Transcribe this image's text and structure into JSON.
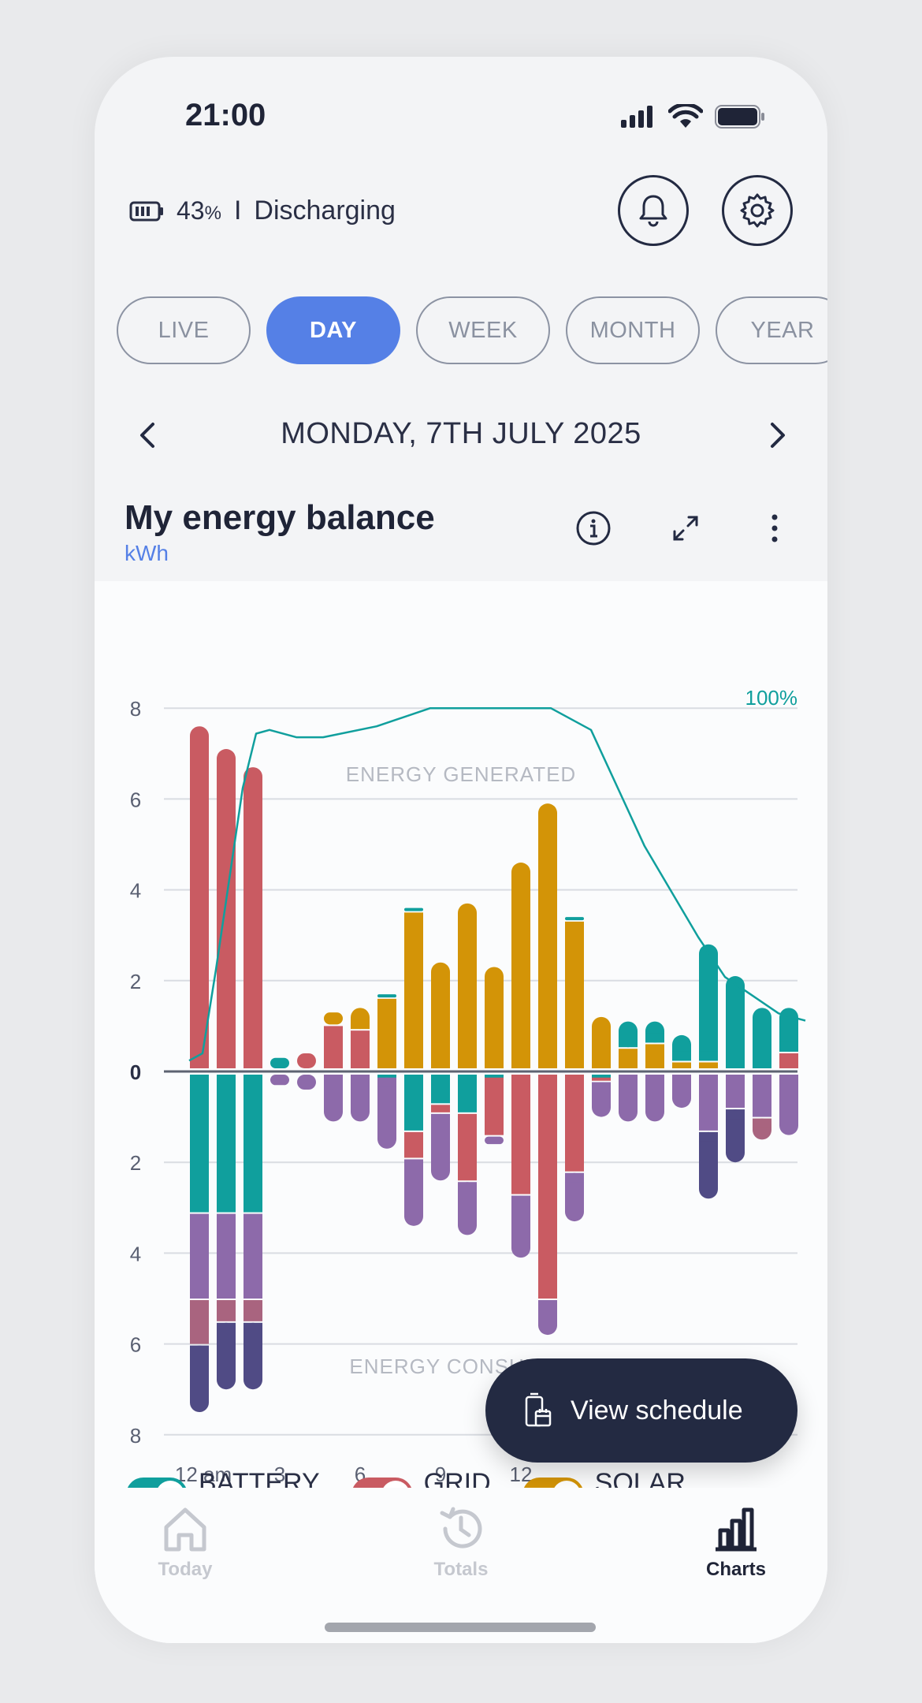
{
  "status_bar": {
    "time": "21:00"
  },
  "battery": {
    "percent": "43",
    "percent_sign": "%",
    "separator": "I",
    "state": "Discharging"
  },
  "header_buttons": {
    "notifications_icon": "bell-icon",
    "settings_icon": "gear-icon"
  },
  "tabs": [
    {
      "label": "LIVE"
    },
    {
      "label": "DAY"
    },
    {
      "label": "WEEK"
    },
    {
      "label": "MONTH"
    },
    {
      "label": "YEAR"
    }
  ],
  "active_tab": "DAY",
  "date": "MONDAY, 7TH JULY 2025",
  "card": {
    "title": "My energy balance",
    "unit": "kWh"
  },
  "colors": {
    "battery": "#109f9d",
    "grid": "#c95b62",
    "solar": "#d39407",
    "home": "#8d6aaa",
    "grid_mix": "#a9647f",
    "export": "#504b85",
    "soc_line": "#109f9d",
    "accent": "#5580e6"
  },
  "chart_data": {
    "type": "bar",
    "stacked": true,
    "ylabel": "kWh",
    "ylim": [
      -8,
      8
    ],
    "y_ticks": [
      8,
      6,
      4,
      2,
      0,
      2,
      4,
      6,
      8
    ],
    "x_tick_labels": [
      "12 am",
      "3",
      "6",
      "9",
      "12"
    ],
    "annotations": {
      "top": "ENERGY GENERATED",
      "bottom": "ENERGY CONSUMED",
      "soc_max": "100%"
    },
    "hours": [
      0,
      1,
      2,
      3,
      4,
      5,
      6,
      7,
      8,
      9,
      10,
      11,
      12,
      13,
      14,
      15,
      16,
      17,
      18,
      19,
      20,
      21,
      22
    ],
    "generated": {
      "grid": [
        7.6,
        7.1,
        6.7,
        0,
        0.4,
        1.0,
        0.9,
        0,
        0,
        0,
        0,
        0,
        0,
        0,
        0,
        0,
        0,
        0,
        0,
        0,
        0,
        0,
        0.4
      ],
      "solar": [
        0,
        0,
        0,
        0,
        0,
        0.3,
        0.5,
        1.6,
        3.5,
        2.4,
        3.7,
        2.3,
        4.6,
        5.9,
        3.3,
        1.2,
        0.5,
        0.6,
        0.2,
        0.2,
        0,
        0,
        0
      ],
      "battery": [
        0,
        0,
        0,
        0.3,
        0,
        0,
        0,
        0.1,
        0.1,
        0,
        0,
        0,
        0,
        0,
        0.1,
        0,
        0.6,
        0.5,
        0.6,
        2.6,
        2.1,
        1.4,
        1.0
      ]
    },
    "consumed": {
      "battery": [
        3.1,
        3.1,
        3.1,
        0,
        0,
        0,
        0,
        0.1,
        1.3,
        0.7,
        0.9,
        0.1,
        0,
        0,
        0,
        0.1,
        0,
        0,
        0,
        0,
        0,
        0,
        0
      ],
      "grid": [
        0,
        0,
        0,
        0,
        0,
        0,
        0,
        0,
        0.6,
        0.2,
        1.5,
        1.3,
        2.7,
        5.0,
        2.2,
        0.1,
        0,
        0,
        0,
        0,
        0,
        0,
        0
      ],
      "home": [
        1.9,
        1.9,
        1.9,
        0.3,
        0.4,
        1.1,
        1.1,
        1.6,
        1.5,
        1.5,
        1.2,
        0.2,
        1.4,
        0.8,
        1.1,
        0.8,
        1.1,
        1.1,
        0.8,
        1.3,
        0.8,
        1.0,
        1.4
      ],
      "grid_mix": [
        1.0,
        0.5,
        0.5,
        0,
        0,
        0,
        0,
        0,
        0,
        0,
        0,
        0,
        0,
        0,
        0,
        0,
        0,
        0,
        0,
        0,
        0,
        0.5,
        0
      ],
      "export": [
        1.5,
        1.5,
        1.5,
        0,
        0,
        0,
        0,
        0,
        0,
        0,
        0,
        0,
        0,
        0,
        0,
        0,
        0,
        0,
        0,
        1.5,
        1.2,
        0,
        0
      ]
    },
    "state_of_charge": {
      "unit": "percent",
      "x": [
        0,
        0.5,
        1,
        2,
        2.5,
        3,
        4,
        5,
        7,
        9,
        11,
        13.5,
        15,
        17,
        19,
        20,
        21,
        22,
        23
      ],
      "y": [
        3,
        5,
        28,
        78,
        93,
        94,
        92,
        92,
        95,
        100,
        100,
        100,
        94,
        62,
        37,
        26,
        21,
        16,
        14
      ]
    }
  },
  "legend": [
    {
      "label": "BATTERY",
      "color": "#109f9d"
    },
    {
      "label": "GRID",
      "color": "#c95b62"
    },
    {
      "label": "SOLAR",
      "color": "#d39407"
    }
  ],
  "fab": {
    "label": "View schedule",
    "icon": "battery-schedule-icon"
  },
  "bottom_nav": [
    {
      "label": "Today",
      "icon": "home-icon"
    },
    {
      "label": "Totals",
      "icon": "history-icon"
    },
    {
      "label": "Charts",
      "icon": "bar-chart-icon"
    }
  ]
}
